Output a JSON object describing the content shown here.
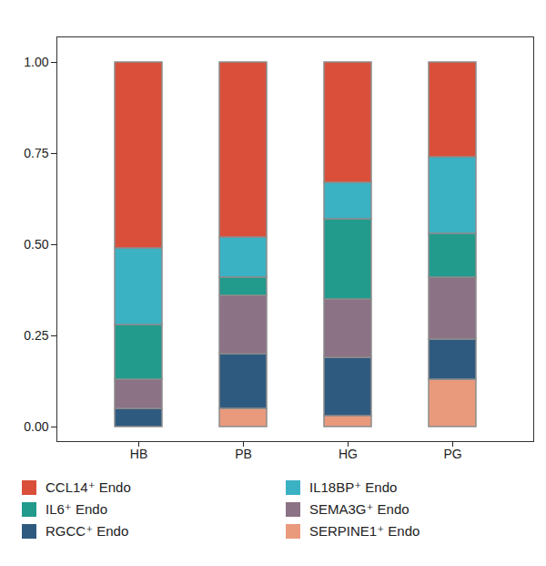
{
  "chart_data": {
    "type": "bar",
    "stacked": true,
    "legend": "bottom",
    "grid": false,
    "categories": [
      "HB",
      "PB",
      "HG",
      "PG"
    ],
    "series": [
      {
        "name": "SERPINE1⁺ Endo",
        "color": "#E99A7D",
        "values": [
          0,
          0.05,
          0.03,
          0.13
        ]
      },
      {
        "name": "RGCC⁺ Endo",
        "color": "#2F5A80",
        "values": [
          0.05,
          0.15,
          0.16,
          0.11
        ]
      },
      {
        "name": "SEMA3G⁺ Endo",
        "color": "#8B7285",
        "values": [
          0.08,
          0.16,
          0.16,
          0.17
        ]
      },
      {
        "name": "IL6⁺ Endo",
        "color": "#229A8C",
        "values": [
          0.15,
          0.05,
          0.22,
          0.12
        ]
      },
      {
        "name": "IL18BP⁺ Endo",
        "color": "#3BB1C4",
        "values": [
          0.21,
          0.11,
          0.1,
          0.21
        ]
      },
      {
        "name": "CCL14⁺ Endo",
        "color": "#D94F3A",
        "values": [
          0.51,
          0.48,
          0.33,
          0.26
        ]
      }
    ],
    "ylim": [
      -0.04,
      1.07
    ],
    "yticks": [
      {
        "value": 0,
        "label": "0.00"
      },
      0.25,
      {
        "value": 0.5,
        "label": "0.50"
      },
      0.75,
      {
        "value": 1,
        "label": "1.00"
      }
    ]
  }
}
